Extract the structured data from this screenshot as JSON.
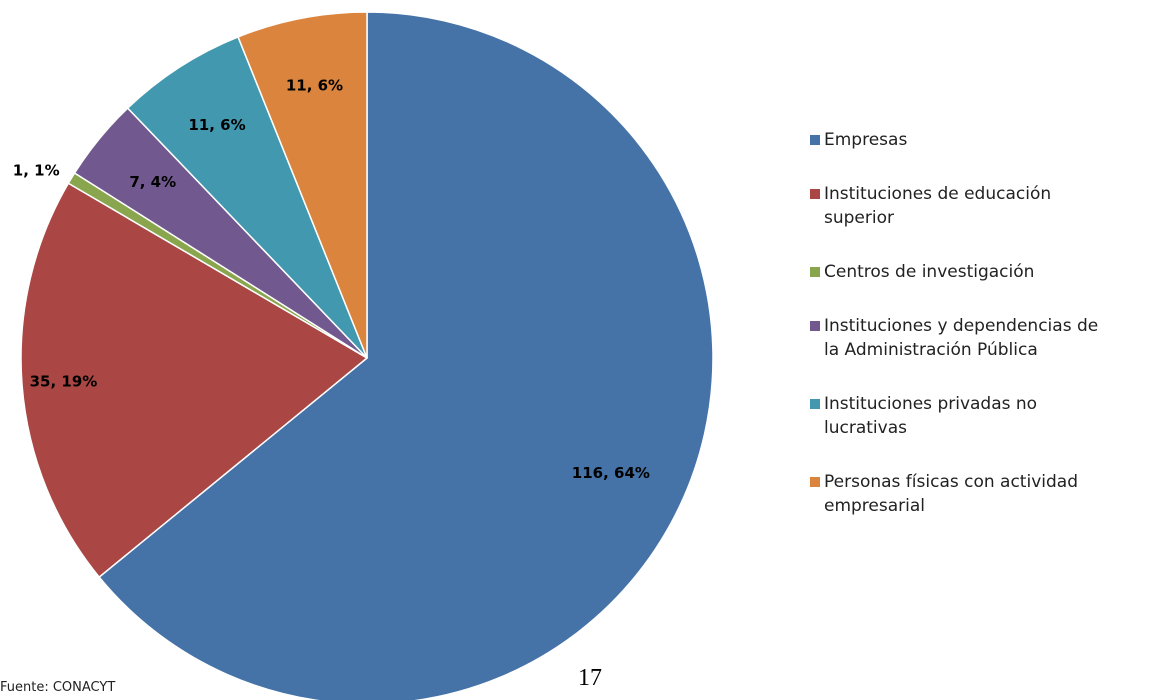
{
  "chart_data": {
    "type": "pie",
    "categories": [
      "Empresas",
      "Instituciones de educación superior",
      "Centros de investigación",
      "Instituciones y dependencias de la Administración Pública",
      "Instituciones privadas no lucrativas",
      "Personas físicas con actividad empresarial"
    ],
    "values": [
      116,
      35,
      1,
      7,
      11,
      11
    ],
    "value_labels": [
      "116, 64%",
      "35, 19%",
      "1, 1%",
      "7, 4%",
      "11, 6%",
      "11, 6%"
    ],
    "colors": [
      "#4572a7",
      "#aa4643",
      "#89a54e",
      "#71588f",
      "#4198af",
      "#db843d"
    ],
    "legend": "right"
  },
  "footer": {
    "source": "Fuente: CONACYT",
    "page_number": "17"
  }
}
